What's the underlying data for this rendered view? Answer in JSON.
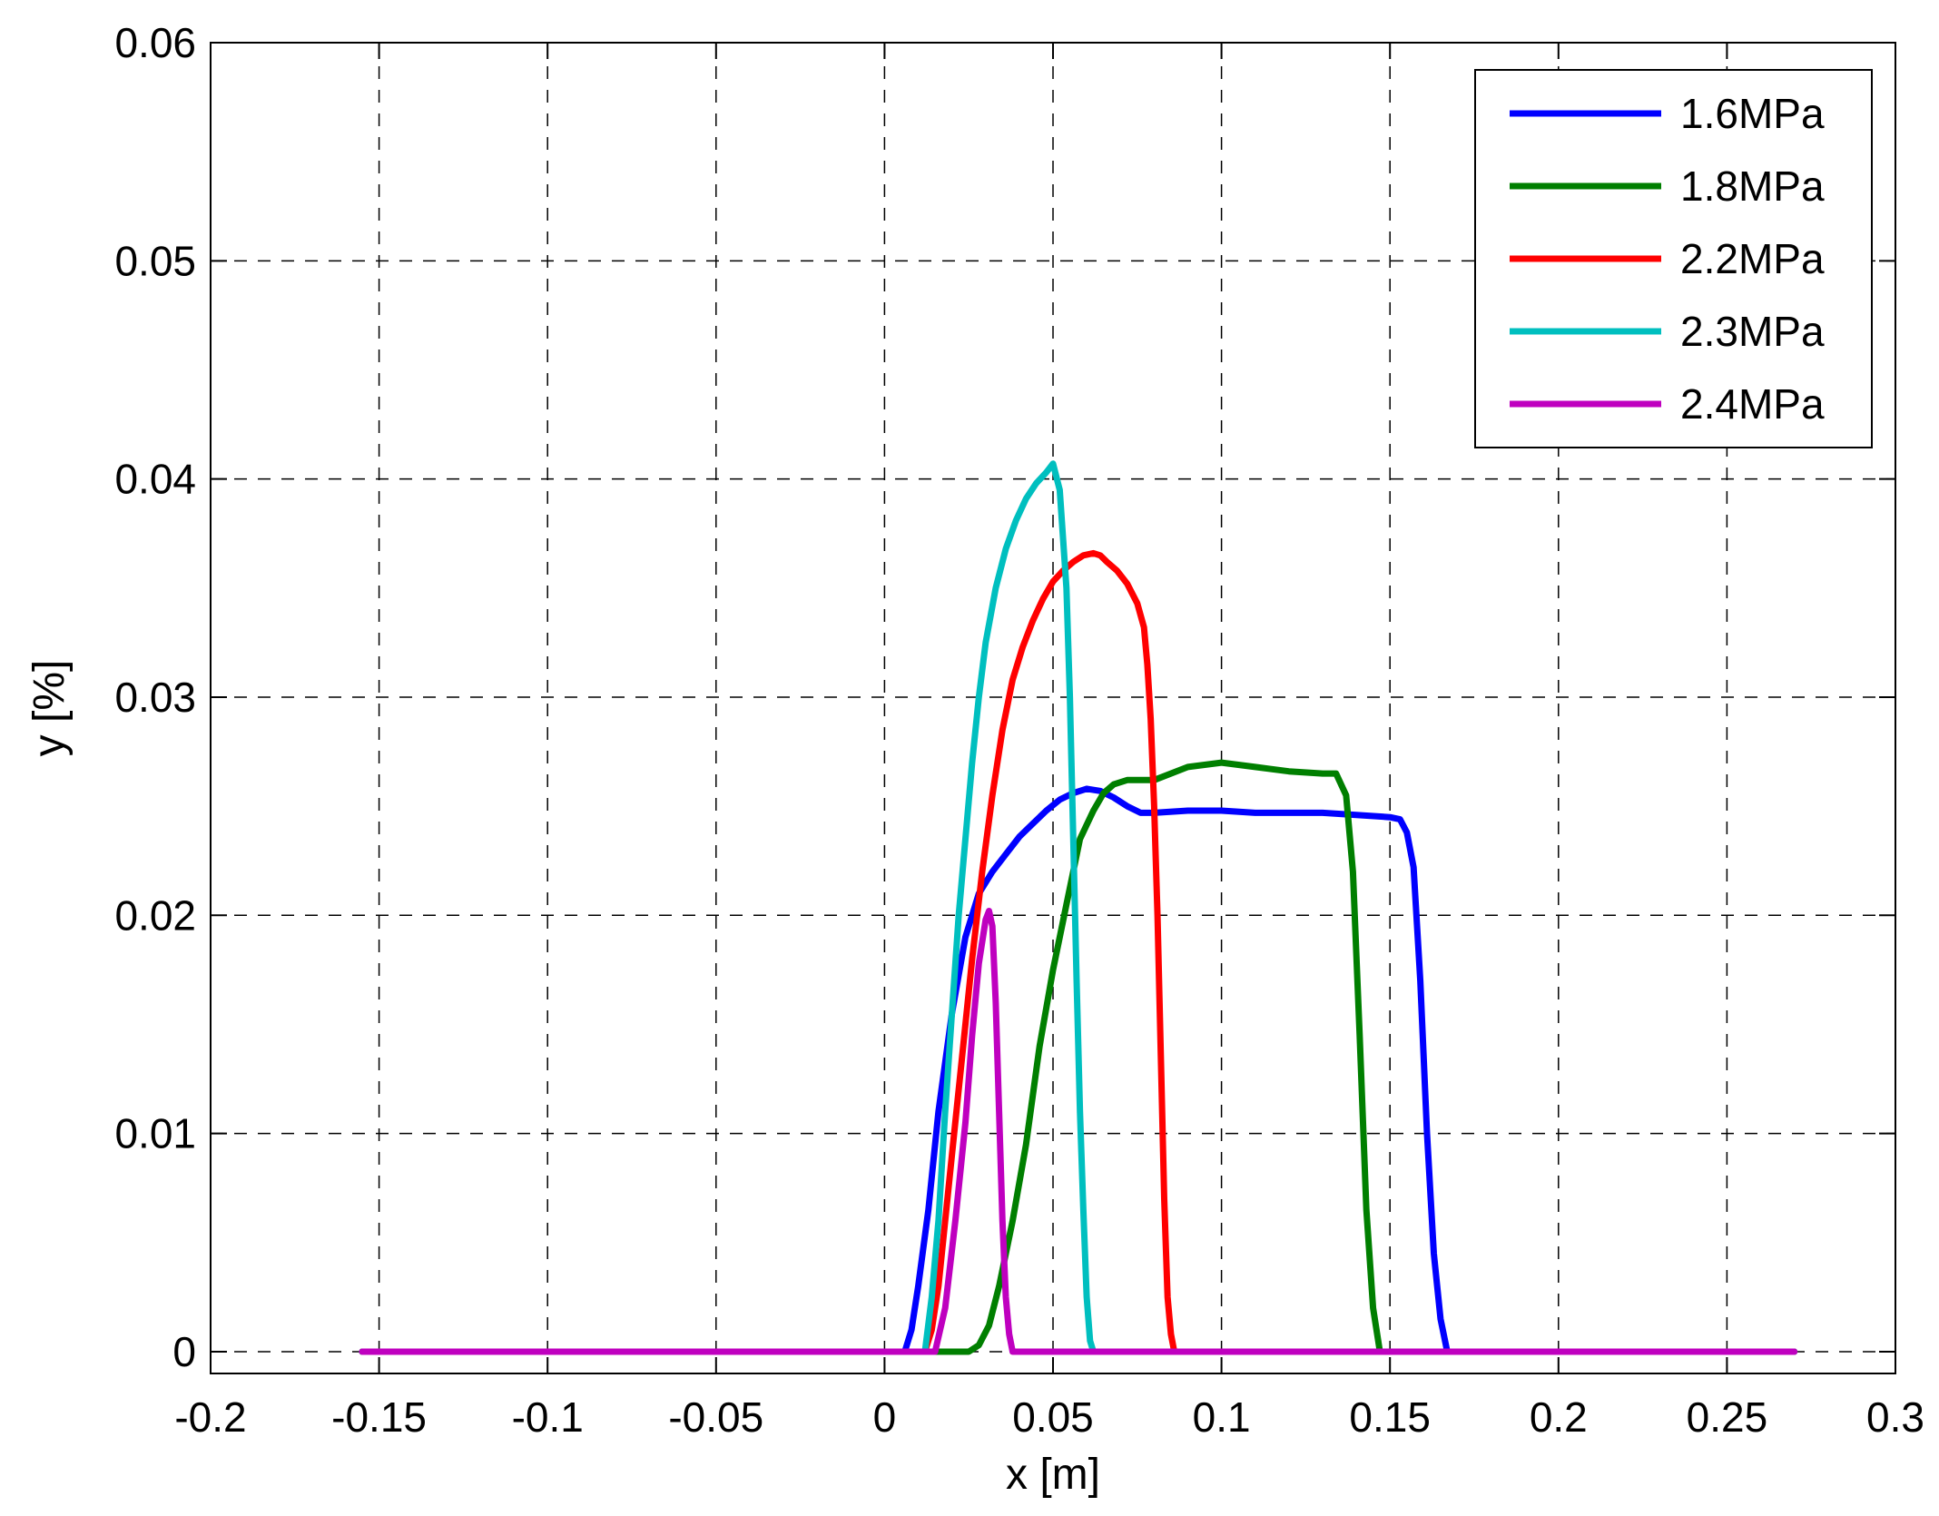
{
  "chart_data": {
    "type": "line",
    "xlabel": "x [m]",
    "ylabel": "y [%]",
    "xlim": [
      -0.2,
      0.3
    ],
    "ylim": [
      -0.001,
      0.06
    ],
    "xticks": [
      "-0.2",
      "-0.15",
      "-0.1",
      "-0.05",
      "0",
      "0.05",
      "0.1",
      "0.15",
      "0.2",
      "0.25",
      "0.3"
    ],
    "yticks": [
      "0",
      "0.01",
      "0.02",
      "0.03",
      "0.04",
      "0.05",
      "0.06"
    ],
    "grid": true,
    "legend_position": "top-right",
    "series": [
      {
        "name": "1.6MPa",
        "color": "#0000ff",
        "x": [
          -0.155,
          0.006,
          0.008,
          0.01,
          0.013,
          0.016,
          0.02,
          0.024,
          0.028,
          0.032,
          0.036,
          0.04,
          0.044,
          0.048,
          0.052,
          0.056,
          0.06,
          0.064,
          0.068,
          0.072,
          0.076,
          0.08,
          0.09,
          0.1,
          0.11,
          0.12,
          0.13,
          0.14,
          0.15,
          0.153,
          0.155,
          0.157,
          0.159,
          0.161,
          0.163,
          0.165,
          0.167,
          0.27
        ],
        "y": [
          0,
          0,
          0.001,
          0.003,
          0.0065,
          0.011,
          0.0155,
          0.019,
          0.021,
          0.022,
          0.0228,
          0.0236,
          0.0242,
          0.0248,
          0.0253,
          0.0256,
          0.0258,
          0.0257,
          0.0254,
          0.025,
          0.0247,
          0.0247,
          0.0248,
          0.0248,
          0.0247,
          0.0247,
          0.0247,
          0.0246,
          0.0245,
          0.0244,
          0.0238,
          0.0222,
          0.017,
          0.01,
          0.0045,
          0.0015,
          0,
          0
        ]
      },
      {
        "name": "1.8MPa",
        "color": "#007f00",
        "x": [
          -0.155,
          0.015,
          0.025,
          0.028,
          0.031,
          0.034,
          0.038,
          0.042,
          0.046,
          0.05,
          0.054,
          0.058,
          0.062,
          0.065,
          0.068,
          0.072,
          0.08,
          0.09,
          0.1,
          0.11,
          0.12,
          0.13,
          0.134,
          0.137,
          0.139,
          0.141,
          0.143,
          0.145,
          0.147,
          0.27
        ],
        "y": [
          0,
          0,
          0,
          0.0003,
          0.0012,
          0.003,
          0.006,
          0.0095,
          0.014,
          0.0175,
          0.0205,
          0.0235,
          0.0248,
          0.0256,
          0.026,
          0.0262,
          0.0262,
          0.0268,
          0.027,
          0.0268,
          0.0266,
          0.0265,
          0.0265,
          0.0255,
          0.022,
          0.0145,
          0.0065,
          0.002,
          0,
          0
        ]
      },
      {
        "name": "2.2MPa",
        "color": "#ff0000",
        "x": [
          -0.155,
          0.012,
          0.014,
          0.016,
          0.018,
          0.02,
          0.023,
          0.026,
          0.029,
          0.032,
          0.035,
          0.038,
          0.041,
          0.044,
          0.047,
          0.05,
          0.053,
          0.056,
          0.059,
          0.062,
          0.064,
          0.066,
          0.069,
          0.072,
          0.075,
          0.077,
          0.078,
          0.079,
          0.08,
          0.081,
          0.082,
          0.083,
          0.084,
          0.085,
          0.086,
          0.27
        ],
        "y": [
          0,
          0,
          0.001,
          0.003,
          0.006,
          0.009,
          0.0135,
          0.018,
          0.022,
          0.0255,
          0.0285,
          0.0308,
          0.0323,
          0.0335,
          0.0345,
          0.0353,
          0.0358,
          0.0362,
          0.0365,
          0.0366,
          0.0365,
          0.0362,
          0.0358,
          0.0352,
          0.0343,
          0.0332,
          0.0315,
          0.029,
          0.025,
          0.02,
          0.0135,
          0.007,
          0.0025,
          0.0008,
          0,
          0
        ]
      },
      {
        "name": "2.3MPa",
        "color": "#00bfbf",
        "x": [
          -0.155,
          0.012,
          0.014,
          0.016,
          0.018,
          0.02,
          0.022,
          0.024,
          0.026,
          0.028,
          0.03,
          0.033,
          0.036,
          0.039,
          0.042,
          0.045,
          0.048,
          0.05,
          0.052,
          0.054,
          0.055,
          0.056,
          0.057,
          0.058,
          0.059,
          0.06,
          0.061,
          0.062,
          0.27
        ],
        "y": [
          0,
          0,
          0.0025,
          0.006,
          0.011,
          0.0155,
          0.02,
          0.0235,
          0.027,
          0.03,
          0.0325,
          0.035,
          0.0368,
          0.0381,
          0.0391,
          0.0398,
          0.0403,
          0.0407,
          0.0395,
          0.035,
          0.03,
          0.0235,
          0.017,
          0.011,
          0.0065,
          0.0025,
          0.0005,
          0,
          0
        ]
      },
      {
        "name": "2.4MPa",
        "color": "#bf00bf",
        "x": [
          -0.155,
          0.015,
          0.018,
          0.021,
          0.024,
          0.026,
          0.028,
          0.03,
          0.031,
          0.032,
          0.033,
          0.034,
          0.035,
          0.036,
          0.037,
          0.038,
          0.27
        ],
        "y": [
          0,
          0,
          0.002,
          0.006,
          0.0105,
          0.0145,
          0.0178,
          0.0198,
          0.0202,
          0.0195,
          0.016,
          0.011,
          0.006,
          0.0025,
          0.0008,
          0,
          0
        ]
      }
    ]
  }
}
